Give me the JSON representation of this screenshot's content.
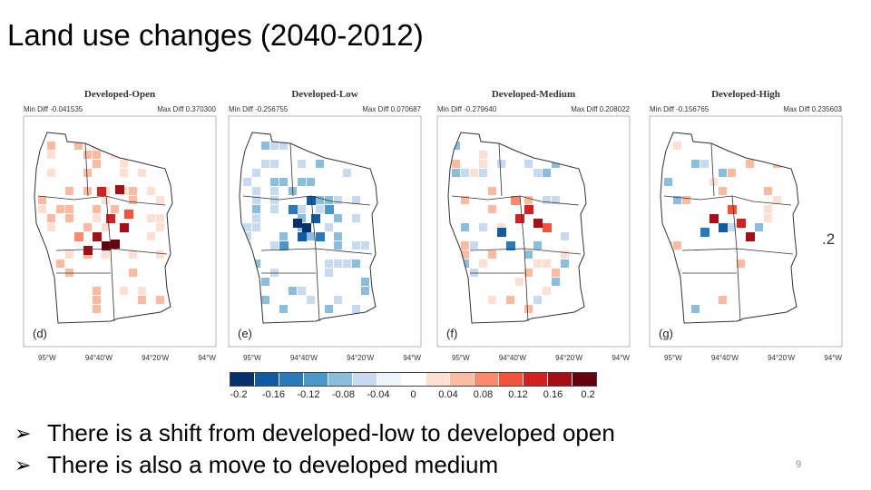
{
  "slide": {
    "title": "Land use changes (2040-2012)",
    "page_number": "9",
    "stray_label": ".2"
  },
  "panels": [
    {
      "heading": "Developed-Open",
      "min_label": "Min Diff -0.041535",
      "max_label": "Max Diff 0.370300",
      "letter": "(d)",
      "ticks": [
        "95°W",
        "94°40'W",
        "94°20'W",
        "94°W"
      ]
    },
    {
      "heading": "Developed-Low",
      "min_label": "Min Diff -0.256755",
      "max_label": "Max Diff 0.070687",
      "letter": "(e)",
      "ticks": [
        "95°W",
        "94°40'W",
        "94°20'W",
        "94°W"
      ]
    },
    {
      "heading": "Developed-Medium",
      "min_label": "Min Diff -0.279640",
      "max_label": "Max Diff 0.208022",
      "letter": "(f)",
      "ticks": [
        "95°W",
        "94°40'W",
        "94°20'W",
        "94°W"
      ]
    },
    {
      "heading": "Developed-High",
      "min_label": "Min Diff -0.156765",
      "max_label": "Max Diff 0.235603",
      "letter": "(g)",
      "ticks": [
        "95°W",
        "94°40'W",
        "94°20'W",
        "94°W"
      ]
    }
  ],
  "colorbar": {
    "labels": [
      "-0.2",
      "-0.16",
      "-0.12",
      "-0.08",
      "-0.04",
      "0",
      "0.04",
      "0.08",
      "0.12",
      "0.16",
      "0.2"
    ],
    "colors": [
      "#08306b",
      "#105ba4",
      "#2a7ab9",
      "#4a98c9",
      "#89bedc",
      "#c6dbef",
      "#eef4fa",
      "#ffffff",
      "#fde0d2",
      "#fcbba1",
      "#fb8a6a",
      "#f4533b",
      "#d42020",
      "#a50f15",
      "#67000d"
    ]
  },
  "bullets": [
    {
      "marker": "arrow-right-icon",
      "text": "There is a shift from developed-low to developed open"
    },
    {
      "marker": "arrow-right-icon",
      "text": "There is also a move to developed medium"
    }
  ]
}
